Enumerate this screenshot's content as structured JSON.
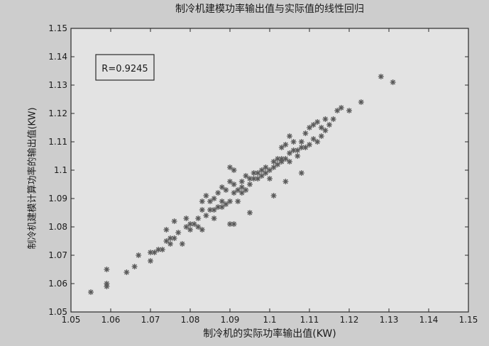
{
  "chart_data": {
    "type": "scatter",
    "title": "制冷机建模功率输出值与实际值的线性回归",
    "xlabel": "制冷机的实际功率输出值(KW)",
    "ylabel": "制冷机建模计算功率的输出值(KW)",
    "xlim": [
      1.05,
      1.15
    ],
    "ylim": [
      1.05,
      1.15
    ],
    "xticks": [
      1.05,
      1.06,
      1.07,
      1.08,
      1.09,
      1.1,
      1.11,
      1.12,
      1.13,
      1.14,
      1.15
    ],
    "yticks": [
      1.05,
      1.06,
      1.07,
      1.08,
      1.09,
      1.1,
      1.11,
      1.12,
      1.13,
      1.14,
      1.15
    ],
    "xtick_labels": [
      "1.05",
      "1.06",
      "1.07",
      "1.08",
      "1.09",
      "1.1",
      "1.11",
      "1.12",
      "1.13",
      "1.14",
      "1.15"
    ],
    "ytick_labels": [
      "1.05",
      "1.06",
      "1.07",
      "1.08",
      "1.09",
      "1.1",
      "1.11",
      "1.12",
      "1.13",
      "1.14",
      "1.15"
    ],
    "grid": false,
    "marker": "*",
    "marker_color": "#5a5a5a",
    "annotation": "R=0.9245",
    "x": [
      1.055,
      1.059,
      1.059,
      1.059,
      1.064,
      1.066,
      1.067,
      1.07,
      1.07,
      1.071,
      1.072,
      1.073,
      1.074,
      1.074,
      1.075,
      1.075,
      1.076,
      1.076,
      1.077,
      1.078,
      1.079,
      1.08,
      1.08,
      1.081,
      1.082,
      1.082,
      1.083,
      1.083,
      1.084,
      1.084,
      1.085,
      1.085,
      1.086,
      1.086,
      1.087,
      1.087,
      1.088,
      1.088,
      1.088,
      1.089,
      1.089,
      1.09,
      1.09,
      1.09,
      1.091,
      1.091,
      1.091,
      1.092,
      1.092,
      1.093,
      1.093,
      1.093,
      1.094,
      1.094,
      1.095,
      1.095,
      1.096,
      1.096,
      1.097,
      1.097,
      1.098,
      1.098,
      1.099,
      1.099,
      1.1,
      1.1,
      1.101,
      1.101,
      1.102,
      1.102,
      1.103,
      1.103,
      1.103,
      1.104,
      1.104,
      1.105,
      1.105,
      1.105,
      1.106,
      1.106,
      1.107,
      1.107,
      1.108,
      1.108,
      1.109,
      1.109,
      1.11,
      1.11,
      1.111,
      1.111,
      1.112,
      1.112,
      1.113,
      1.113,
      1.114,
      1.114,
      1.115,
      1.116,
      1.117,
      1.118,
      1.12,
      1.123,
      1.128,
      1.131,
      1.09,
      1.095,
      1.108,
      1.101,
      1.104,
      1.091,
      1.086,
      1.079,
      1.083
    ],
    "y": [
      1.057,
      1.065,
      1.06,
      1.059,
      1.064,
      1.066,
      1.07,
      1.071,
      1.068,
      1.071,
      1.072,
      1.072,
      1.079,
      1.075,
      1.074,
      1.076,
      1.076,
      1.082,
      1.078,
      1.074,
      1.08,
      1.079,
      1.081,
      1.081,
      1.08,
      1.083,
      1.079,
      1.086,
      1.084,
      1.091,
      1.086,
      1.089,
      1.086,
      1.09,
      1.087,
      1.092,
      1.087,
      1.089,
      1.094,
      1.088,
      1.093,
      1.081,
      1.089,
      1.096,
      1.092,
      1.095,
      1.1,
      1.089,
      1.093,
      1.094,
      1.092,
      1.096,
      1.093,
      1.098,
      1.095,
      1.097,
      1.097,
      1.099,
      1.097,
      1.099,
      1.098,
      1.1,
      1.099,
      1.101,
      1.1,
      1.097,
      1.101,
      1.103,
      1.102,
      1.104,
      1.103,
      1.104,
      1.108,
      1.104,
      1.109,
      1.103,
      1.106,
      1.112,
      1.107,
      1.11,
      1.107,
      1.105,
      1.108,
      1.11,
      1.108,
      1.113,
      1.109,
      1.115,
      1.111,
      1.116,
      1.11,
      1.117,
      1.112,
      1.115,
      1.114,
      1.118,
      1.116,
      1.118,
      1.121,
      1.122,
      1.121,
      1.124,
      1.133,
      1.131,
      1.101,
      1.085,
      1.099,
      1.091,
      1.096,
      1.081,
      1.083,
      1.083,
      1.089
    ]
  }
}
